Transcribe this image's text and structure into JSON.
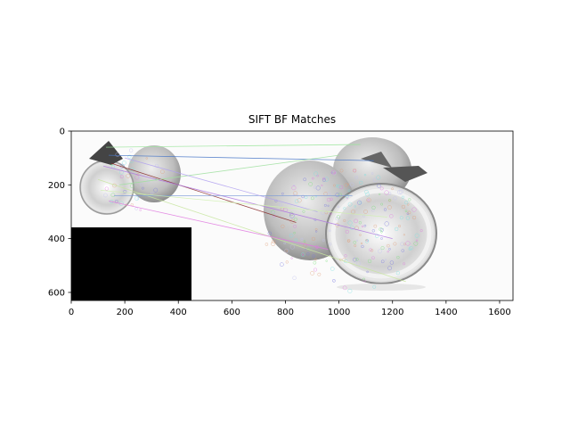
{
  "chart_data": {
    "type": "image",
    "title": "SIFT BF Matches",
    "xlabel": "",
    "ylabel": "",
    "xlim": [
      0,
      1650
    ],
    "ylim": [
      630,
      0
    ],
    "x_ticks": [
      0,
      200,
      400,
      600,
      800,
      1000,
      1200,
      1400,
      1600
    ],
    "y_ticks": [
      0,
      200,
      400,
      600
    ],
    "grid": false,
    "legend": "none",
    "image_content": {
      "left_image": {
        "x_range": [
          0,
          450
        ],
        "y_range": [
          0,
          630
        ],
        "black_region_x": [
          0,
          450
        ],
        "black_region_y": [
          360,
          630
        ]
      },
      "right_image": {
        "x_range": [
          720,
          1400
        ],
        "y_range": [
          20,
          600
        ]
      },
      "match_lines": [
        {
          "from": [
            130,
            60
          ],
          "to": [
            1080,
            50
          ],
          "color": "#9be59b"
        },
        {
          "from": [
            140,
            90
          ],
          "to": [
            1130,
            110
          ],
          "color": "#4a78c8"
        },
        {
          "from": [
            150,
            120
          ],
          "to": [
            840,
            340
          ],
          "color": "#8a2a2a"
        },
        {
          "from": [
            120,
            130
          ],
          "to": [
            1200,
            400
          ],
          "color": "#b07ae0"
        },
        {
          "from": [
            100,
            180
          ],
          "to": [
            1250,
            560
          ],
          "color": "#c8e6a0"
        },
        {
          "from": [
            160,
            240
          ],
          "to": [
            1050,
            240
          ],
          "color": "#7a9ad8"
        },
        {
          "from": [
            140,
            260
          ],
          "to": [
            960,
            440
          ],
          "color": "#e07ae0"
        },
        {
          "from": [
            180,
            200
          ],
          "to": [
            1000,
            90
          ],
          "color": "#a0e0a0"
        },
        {
          "from": [
            200,
            100
          ],
          "to": [
            920,
            300
          ],
          "color": "#b0a0f0"
        },
        {
          "from": [
            110,
            220
          ],
          "to": [
            1180,
            320
          ],
          "color": "#d0f0b0"
        }
      ]
    }
  },
  "colors": {
    "axes": "#000000",
    "image_background": "#f7f7f7",
    "fruit_fill": "#d4d4d4",
    "fruit_dark": "#8a8a8a",
    "black_region": "#000000"
  }
}
